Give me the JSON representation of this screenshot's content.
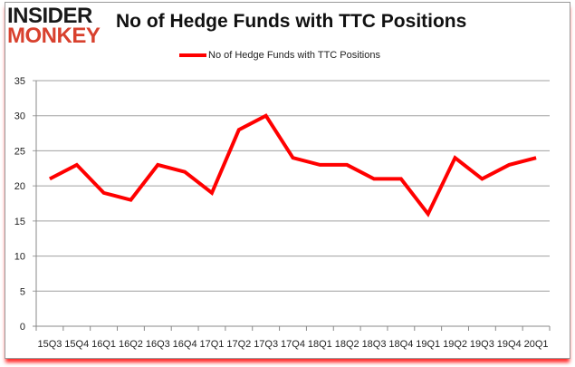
{
  "brand": {
    "line1": "INSIDER",
    "line2": "MONKEY"
  },
  "chart_data": {
    "type": "line",
    "title": "No of Hedge Funds with TTC Positions",
    "categories": [
      "15Q3",
      "15Q4",
      "16Q1",
      "16Q2",
      "16Q3",
      "16Q4",
      "17Q1",
      "17Q2",
      "17Q3",
      "17Q4",
      "18Q1",
      "18Q2",
      "18Q3",
      "18Q4",
      "19Q1",
      "19Q2",
      "19Q3",
      "19Q4",
      "20Q1"
    ],
    "series": [
      {
        "name": "No of Hedge Funds with TTC Positions",
        "color": "#ff0000",
        "values": [
          21,
          23,
          19,
          18,
          23,
          22,
          19,
          28,
          30,
          24,
          23,
          23,
          21,
          21,
          16,
          24,
          21,
          23,
          24
        ]
      }
    ],
    "ylim": [
      0,
      35
    ],
    "yticks": [
      0,
      5,
      10,
      15,
      20,
      25,
      30,
      35
    ],
    "grid": true,
    "legend": "top-center"
  }
}
